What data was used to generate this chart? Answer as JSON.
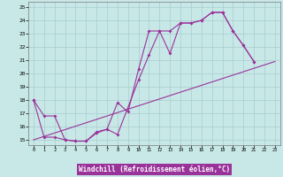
{
  "bg_color": "#c8e8e8",
  "grid_color": "#a8cccc",
  "line_color": "#993399",
  "xlabel": "Windchill (Refroidissement éolien,°C)",
  "xlabel_bg": "#993399",
  "xlabel_fg": "#ffffff",
  "xlim": [
    -0.5,
    23.5
  ],
  "ylim": [
    14.6,
    25.4
  ],
  "xticks": [
    0,
    1,
    2,
    3,
    4,
    5,
    6,
    7,
    8,
    9,
    10,
    11,
    12,
    13,
    14,
    15,
    16,
    17,
    18,
    19,
    20,
    21,
    22,
    23
  ],
  "yticks": [
    15,
    16,
    17,
    18,
    19,
    20,
    21,
    22,
    23,
    24,
    25
  ],
  "s1x": [
    0,
    1,
    2,
    3,
    4,
    5,
    6,
    7,
    8,
    9,
    10,
    11,
    12,
    13,
    14,
    15,
    16,
    17,
    18,
    19,
    20,
    21
  ],
  "s1y": [
    18.0,
    16.8,
    16.8,
    15.0,
    14.9,
    14.9,
    15.5,
    15.8,
    17.8,
    17.1,
    20.3,
    23.2,
    23.2,
    21.5,
    23.8,
    23.8,
    24.0,
    24.6,
    24.6,
    23.2,
    22.1,
    20.9
  ],
  "s2x": [
    0,
    1,
    2,
    3,
    4,
    5,
    6,
    7,
    8,
    10,
    11,
    12,
    13,
    14,
    15,
    16,
    17,
    18,
    19,
    20,
    21
  ],
  "s2y": [
    18.0,
    15.2,
    15.2,
    15.0,
    14.9,
    14.9,
    15.6,
    15.8,
    15.4,
    19.5,
    21.4,
    23.2,
    23.2,
    23.8,
    23.8,
    24.0,
    24.6,
    24.6,
    23.2,
    22.1,
    20.9
  ],
  "s3x": [
    0,
    23
  ],
  "s3y": [
    15.0,
    20.9
  ]
}
